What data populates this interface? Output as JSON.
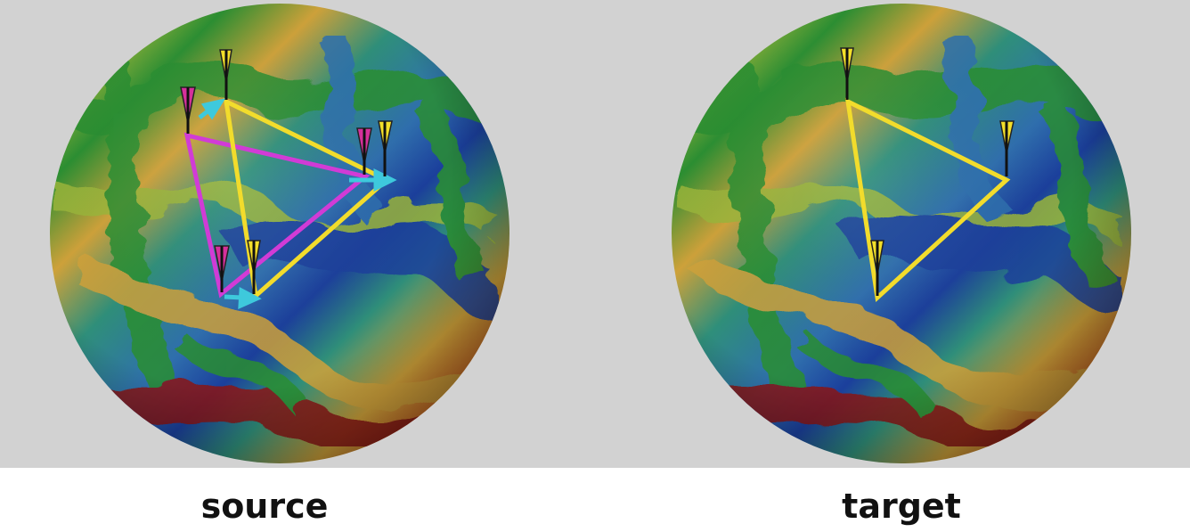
{
  "panels": [
    {
      "caption": "source"
    },
    {
      "caption": "target"
    }
  ],
  "colors": {
    "background": "#d2d2d2",
    "yellow_triangle": "#f2dc2c",
    "magenta_triangle": "#d13bd6",
    "cyan_arrows": "#3ec9dc",
    "flag_yellow": "#f3df2a",
    "flag_magenta": "#d6309b",
    "surface_palette": [
      "#8a1717",
      "#c8551f",
      "#cfa23a",
      "#9ab53a",
      "#2b8f32",
      "#2f8f7a",
      "#2f6fae",
      "#1b3f9c"
    ]
  }
}
